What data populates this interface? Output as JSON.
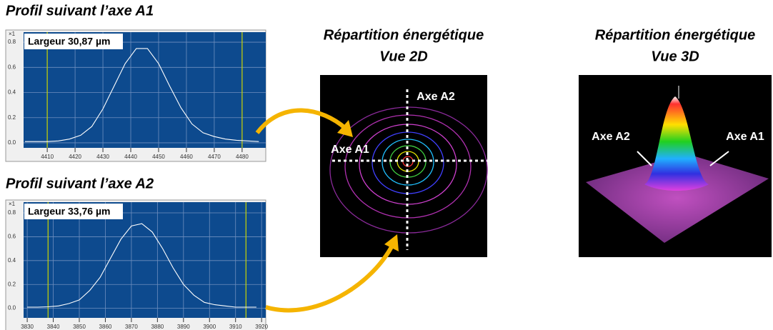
{
  "chart_data": [
    {
      "type": "line",
      "title": "Profil suivant l’axe A1",
      "annotation": "Largeur 30,87 µm",
      "y_unit": "×1",
      "x": [
        4402,
        4406,
        4410,
        4414,
        4418,
        4422,
        4426,
        4430,
        4434,
        4438,
        4442,
        4446,
        4450,
        4454,
        4458,
        4462,
        4466,
        4470,
        4474,
        4478,
        4482,
        4486
      ],
      "values": [
        0.01,
        0.01,
        0.01,
        0.015,
        0.03,
        0.06,
        0.13,
        0.27,
        0.45,
        0.63,
        0.75,
        0.75,
        0.63,
        0.45,
        0.28,
        0.15,
        0.08,
        0.05,
        0.03,
        0.02,
        0.015,
        0.01
      ],
      "color": "#ffffff",
      "cursors": [
        4410,
        4480
      ],
      "cursor_color": "#c8d400",
      "xlim": [
        4401.5,
        4488.5
      ],
      "xticks": [
        4410,
        4420,
        4430,
        4440,
        4450,
        4460,
        4470,
        4480
      ],
      "ylim": [
        -0.04,
        0.88
      ],
      "yticks": [
        {
          "value": 0,
          "label": "0.0"
        },
        0.2,
        0.4,
        0.6,
        0.8
      ],
      "grid": true
    },
    {
      "type": "line",
      "title": "Profil suivant l’axe A2",
      "annotation": "Largeur 33,76 µm",
      "y_unit": "×1",
      "x": [
        3830,
        3834,
        3838,
        3842,
        3846,
        3850,
        3854,
        3858,
        3862,
        3866,
        3870,
        3874,
        3878,
        3882,
        3886,
        3890,
        3894,
        3898,
        3902,
        3906,
        3910,
        3914,
        3918
      ],
      "values": [
        0.01,
        0.01,
        0.013,
        0.02,
        0.04,
        0.07,
        0.15,
        0.26,
        0.42,
        0.58,
        0.69,
        0.71,
        0.64,
        0.5,
        0.34,
        0.2,
        0.11,
        0.05,
        0.03,
        0.02,
        0.01,
        0.01,
        0.01
      ],
      "color": "#ffffff",
      "cursors": [
        3838,
        3914
      ],
      "cursor_color": "#c8d400",
      "xlim": [
        3828.6,
        3921.6
      ],
      "xticks": [
        3830,
        3840,
        3850,
        3860,
        3870,
        3880,
        3890,
        3900,
        3910,
        3920
      ],
      "ylim": [
        -0.08,
        0.89
      ],
      "yticks": [
        {
          "value": 0,
          "label": "0.0"
        },
        0.2,
        0.4,
        0.6,
        0.8
      ],
      "grid": true
    }
  ],
  "view_2d": {
    "title": "Répartition énergétique",
    "subtitle": "Vue 2D",
    "label_vertical": "Axe A2",
    "label_horizontal": "Axe A1"
  },
  "view_3d": {
    "title": "Répartition énergétique",
    "subtitle": "Vue 3D",
    "label_left": "Axe A2",
    "label_right": "Axe A1"
  }
}
